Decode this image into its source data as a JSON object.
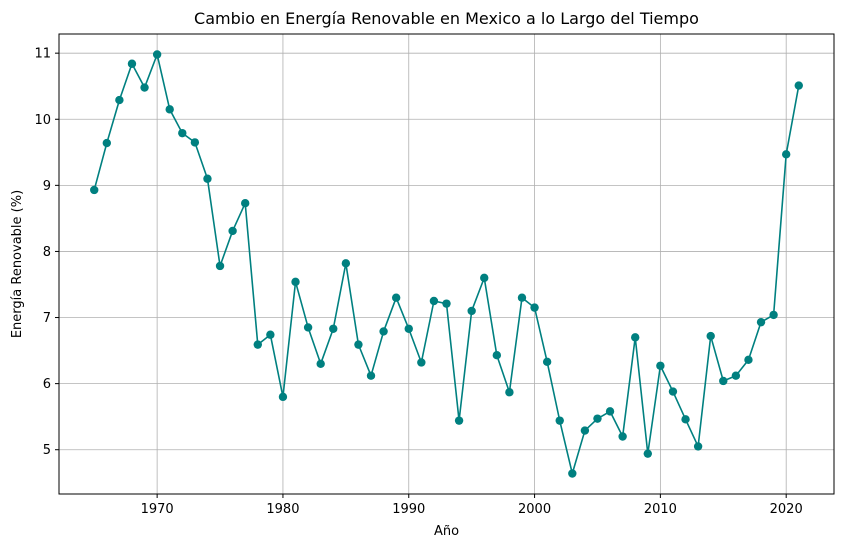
{
  "chart_data": {
    "type": "line",
    "title": "Cambio en Energía Renovable en Mexico a lo Largo del Tiempo",
    "xlabel": "Año",
    "ylabel": "Energía Renovable (%)",
    "xlim": [
      1962.2,
      2023.8
    ],
    "ylim": [
      4.33,
      11.29
    ],
    "xticks": [
      1970,
      1980,
      1990,
      2000,
      2010,
      2020
    ],
    "yticks": [
      5,
      6,
      7,
      8,
      9,
      10,
      11
    ],
    "grid": true,
    "color": "#008080",
    "series": [
      {
        "x": [
          1965,
          1966,
          1967,
          1968,
          1969,
          1970,
          1971,
          1972,
          1973,
          1974,
          1975,
          1976,
          1977,
          1978,
          1979,
          1980,
          1981,
          1982,
          1983,
          1984,
          1985,
          1986,
          1987,
          1988,
          1989,
          1990,
          1991,
          1992,
          1993,
          1994,
          1995,
          1996,
          1997,
          1998,
          1999,
          2000,
          2001,
          2002,
          2003,
          2004,
          2005,
          2006,
          2007,
          2008,
          2009,
          2010,
          2011,
          2012,
          2013,
          2014,
          2015,
          2016,
          2017,
          2018,
          2019,
          2020,
          2021
        ],
        "values": [
          8.93,
          9.64,
          10.29,
          10.84,
          10.48,
          10.98,
          10.15,
          9.79,
          9.65,
          9.1,
          7.78,
          8.31,
          8.73,
          6.59,
          6.74,
          5.8,
          7.54,
          6.85,
          6.3,
          6.83,
          7.82,
          6.59,
          6.12,
          6.79,
          7.3,
          6.83,
          6.32,
          7.25,
          7.21,
          5.44,
          7.1,
          7.6,
          6.43,
          5.87,
          7.3,
          7.15,
          6.33,
          5.44,
          4.64,
          5.29,
          5.47,
          5.58,
          5.2,
          6.7,
          4.94,
          6.27,
          5.88,
          5.46,
          5.05,
          6.72,
          6.04,
          6.12,
          6.36,
          6.93,
          7.04,
          9.47,
          10.51
        ]
      }
    ]
  }
}
